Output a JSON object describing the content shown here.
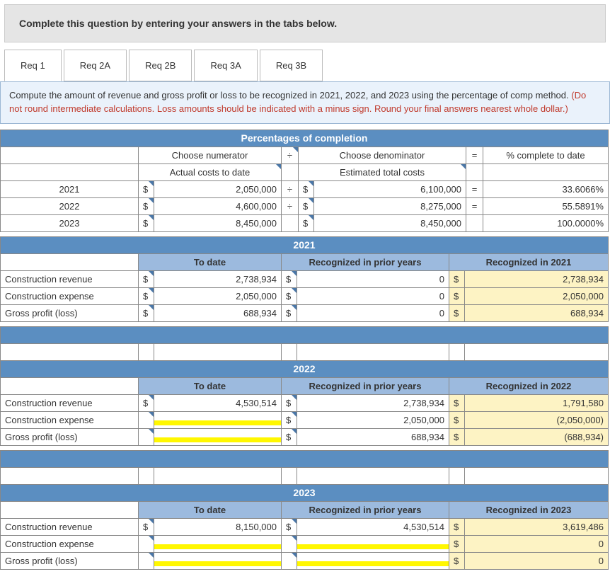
{
  "colors": {
    "section_header_bg": "#5b8ec1",
    "sub_header_bg": "#9cbade",
    "highlight_bg": "#fdf3c4",
    "border": "#888888",
    "prompt_bg": "#eaf2fb",
    "instruction_bg": "#e5e5e5",
    "red_text": "#c0392b",
    "yellow_marker": "#fff700",
    "corner_marker": "#4a77a8"
  },
  "instruction": "Complete this question by entering your answers in the tabs below.",
  "tabs": [
    "Req 1",
    "Req 2A",
    "Req 2B",
    "Req 3A",
    "Req 3B"
  ],
  "active_tab_index": 0,
  "prompt_main": "Compute the amount of revenue and gross profit or loss to be recognized in 2021, 2022, and 2023 using the percentage of comp method. ",
  "prompt_red": "(Do not round intermediate calculations. Loss amounts should be indicated with a minus sign. Round your final answers nearest whole dollar.)",
  "poc": {
    "title": "Percentages of completion",
    "col_numerator": "Choose numerator",
    "col_denominator": "Choose denominator",
    "col_pct": "% complete to date",
    "sub_numerator": "Actual costs to date",
    "sub_denominator": "Estimated total costs",
    "divide_sym": "÷",
    "equals_sym": "=",
    "rows": [
      {
        "year": "2021",
        "num": "2,050,000",
        "den": "6,100,000",
        "pct": "33.6066%",
        "show_ops": true
      },
      {
        "year": "2022",
        "num": "4,600,000",
        "den": "8,275,000",
        "pct": "55.5891%",
        "show_ops": true
      },
      {
        "year": "2023",
        "num": "8,450,000",
        "den": "8,450,000",
        "pct": "100.0000%",
        "show_ops": false
      }
    ]
  },
  "row_labels": {
    "revenue": "Construction revenue",
    "expense": "Construction expense",
    "gross": "Gross profit (loss)"
  },
  "col_labels": {
    "to_date": "To date",
    "prior": "Recognized in prior years"
  },
  "years": [
    {
      "year": "2021",
      "rec_label": "Recognized in 2021",
      "revenue": {
        "to_date": "2,738,934",
        "prior": "0",
        "rec": "2,738,934",
        "td_marked": false,
        "prior_marked": false
      },
      "expense": {
        "to_date": "2,050,000",
        "prior": "0",
        "rec": "2,050,000",
        "td_marked": false,
        "prior_marked": false
      },
      "gross": {
        "to_date": "688,934",
        "prior": "0",
        "rec": "688,934",
        "td_marked": false,
        "prior_marked": false
      }
    },
    {
      "year": "2022",
      "rec_label": "Recognized in 2022",
      "revenue": {
        "to_date": "4,530,514",
        "prior": "2,738,934",
        "rec": "1,791,580",
        "td_marked": false,
        "prior_marked": false
      },
      "expense": {
        "to_date": "",
        "prior": "2,050,000",
        "rec": "(2,050,000)",
        "td_marked": true,
        "prior_marked": false
      },
      "gross": {
        "to_date": "",
        "prior": "688,934",
        "rec": "(688,934)",
        "td_marked": true,
        "prior_marked": false
      }
    },
    {
      "year": "2023",
      "rec_label": "Recognized in 2023",
      "revenue": {
        "to_date": "8,150,000",
        "prior": "4,530,514",
        "rec": "3,619,486",
        "td_marked": false,
        "prior_marked": false
      },
      "expense": {
        "to_date": "",
        "prior": "",
        "rec": "0",
        "td_marked": true,
        "prior_marked": true
      },
      "gross": {
        "to_date": "",
        "prior": "",
        "rec": "0",
        "td_marked": true,
        "prior_marked": true
      }
    }
  ]
}
